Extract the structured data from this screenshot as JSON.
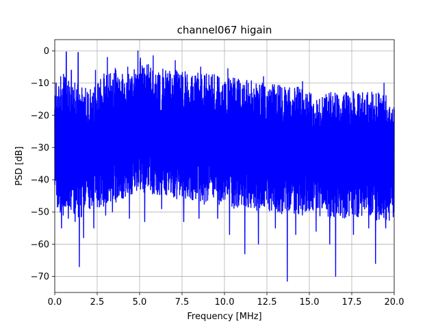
{
  "chart_data": {
    "type": "line",
    "title": "channel067 higain",
    "xlabel": "Frequency [MHz]",
    "ylabel": "PSD [dB]",
    "xlim": [
      0,
      20
    ],
    "ylim": [
      -75,
      3.5
    ],
    "xticks": [
      0,
      2.5,
      5,
      7.5,
      10,
      12.5,
      15,
      17.5,
      20
    ],
    "xtick_labels": [
      "0.0",
      "2.5",
      "5.0",
      "7.5",
      "10.0",
      "12.5",
      "15.0",
      "17.5",
      "20.0"
    ],
    "yticks": [
      0,
      -10,
      -20,
      -30,
      -40,
      -50,
      -60,
      -70
    ],
    "ytick_labels": [
      "0",
      "−10",
      "−20",
      "−30",
      "−40",
      "−50",
      "−60",
      "−70"
    ],
    "grid": true,
    "series": [
      {
        "color": "#0000ff",
        "x": [
          0,
          0.5,
          1,
          1.5,
          2,
          2.5,
          3,
          3.5,
          4,
          4.5,
          5,
          5.5,
          6,
          6.5,
          7,
          7.5,
          8,
          8.5,
          9,
          9.5,
          10,
          10.5,
          11,
          11.5,
          12,
          12.5,
          13,
          13.5,
          14,
          14.5,
          15,
          15.5,
          16,
          16.5,
          17,
          17.5,
          18,
          18.5,
          19,
          19.5,
          20
        ],
        "envelope_upper": [
          -12,
          -6,
          -9,
          -8,
          -13,
          -10,
          -6,
          -5,
          -7,
          -6,
          -2,
          -4,
          -6,
          -5,
          -6,
          -6,
          -7,
          -6,
          -7,
          -7,
          -8,
          -8,
          -9,
          -9,
          -10,
          -10,
          -10,
          -11,
          -11,
          -11,
          -12,
          -12,
          -12,
          -12,
          -12,
          -12,
          -12,
          -12,
          -13,
          -13,
          -14
        ],
        "envelope_lower": [
          -49,
          -51,
          -50,
          -53,
          -49,
          -49,
          -48,
          -48,
          -46,
          -45,
          -44,
          -44,
          -45,
          -45,
          -46,
          -46,
          -47,
          -47,
          -48,
          -48,
          -48,
          -49,
          -49,
          -49,
          -50,
          -50,
          -50,
          -51,
          -51,
          -51,
          -51,
          -51,
          -52,
          -52,
          -52,
          -52,
          -52,
          -52,
          -53,
          -53,
          -53
        ],
        "peaks": [
          {
            "x": 0.08,
            "y": -10
          },
          {
            "x": 0.35,
            "y": -8
          },
          {
            "x": 0.68,
            "y": -0.3
          },
          {
            "x": 0.98,
            "y": -6
          },
          {
            "x": 1.38,
            "y": -0.5
          },
          {
            "x": 1.7,
            "y": -9
          },
          {
            "x": 2.1,
            "y": -12
          },
          {
            "x": 2.4,
            "y": -6
          },
          {
            "x": 3.1,
            "y": -2
          },
          {
            "x": 3.6,
            "y": -6
          },
          {
            "x": 4.3,
            "y": -5
          },
          {
            "x": 4.9,
            "y": 0
          },
          {
            "x": 5.3,
            "y": -3
          },
          {
            "x": 5.8,
            "y": -1.5
          },
          {
            "x": 6.3,
            "y": -4
          },
          {
            "x": 7.1,
            "y": -3
          },
          {
            "x": 8.6,
            "y": -5
          },
          {
            "x": 10.2,
            "y": -5.5
          },
          {
            "x": 12.3,
            "y": -8
          },
          {
            "x": 14.6,
            "y": -9.5
          },
          {
            "x": 17.6,
            "y": -9
          },
          {
            "x": 19.4,
            "y": -10
          }
        ],
        "dips": [
          {
            "x": 0.4,
            "y": -55
          },
          {
            "x": 0.5,
            "y": -51
          },
          {
            "x": 0.8,
            "y": -52
          },
          {
            "x": 1.2,
            "y": -53
          },
          {
            "x": 1.45,
            "y": -67
          },
          {
            "x": 1.7,
            "y": -58
          },
          {
            "x": 2.3,
            "y": -55
          },
          {
            "x": 3.0,
            "y": -51
          },
          {
            "x": 3.4,
            "y": -50
          },
          {
            "x": 4.4,
            "y": -52
          },
          {
            "x": 5.3,
            "y": -53
          },
          {
            "x": 6.3,
            "y": -49
          },
          {
            "x": 7.6,
            "y": -53
          },
          {
            "x": 8.5,
            "y": -52
          },
          {
            "x": 9.6,
            "y": -52
          },
          {
            "x": 10.3,
            "y": -57
          },
          {
            "x": 11.2,
            "y": -63
          },
          {
            "x": 12.0,
            "y": -60
          },
          {
            "x": 13.0,
            "y": -55
          },
          {
            "x": 13.7,
            "y": -71.5
          },
          {
            "x": 14.2,
            "y": -57
          },
          {
            "x": 15.4,
            "y": -56
          },
          {
            "x": 16.2,
            "y": -60
          },
          {
            "x": 16.55,
            "y": -70
          },
          {
            "x": 17.6,
            "y": -57
          },
          {
            "x": 18.5,
            "y": -55
          },
          {
            "x": 18.9,
            "y": -66
          },
          {
            "x": 19.5,
            "y": -55
          }
        ]
      }
    ]
  }
}
